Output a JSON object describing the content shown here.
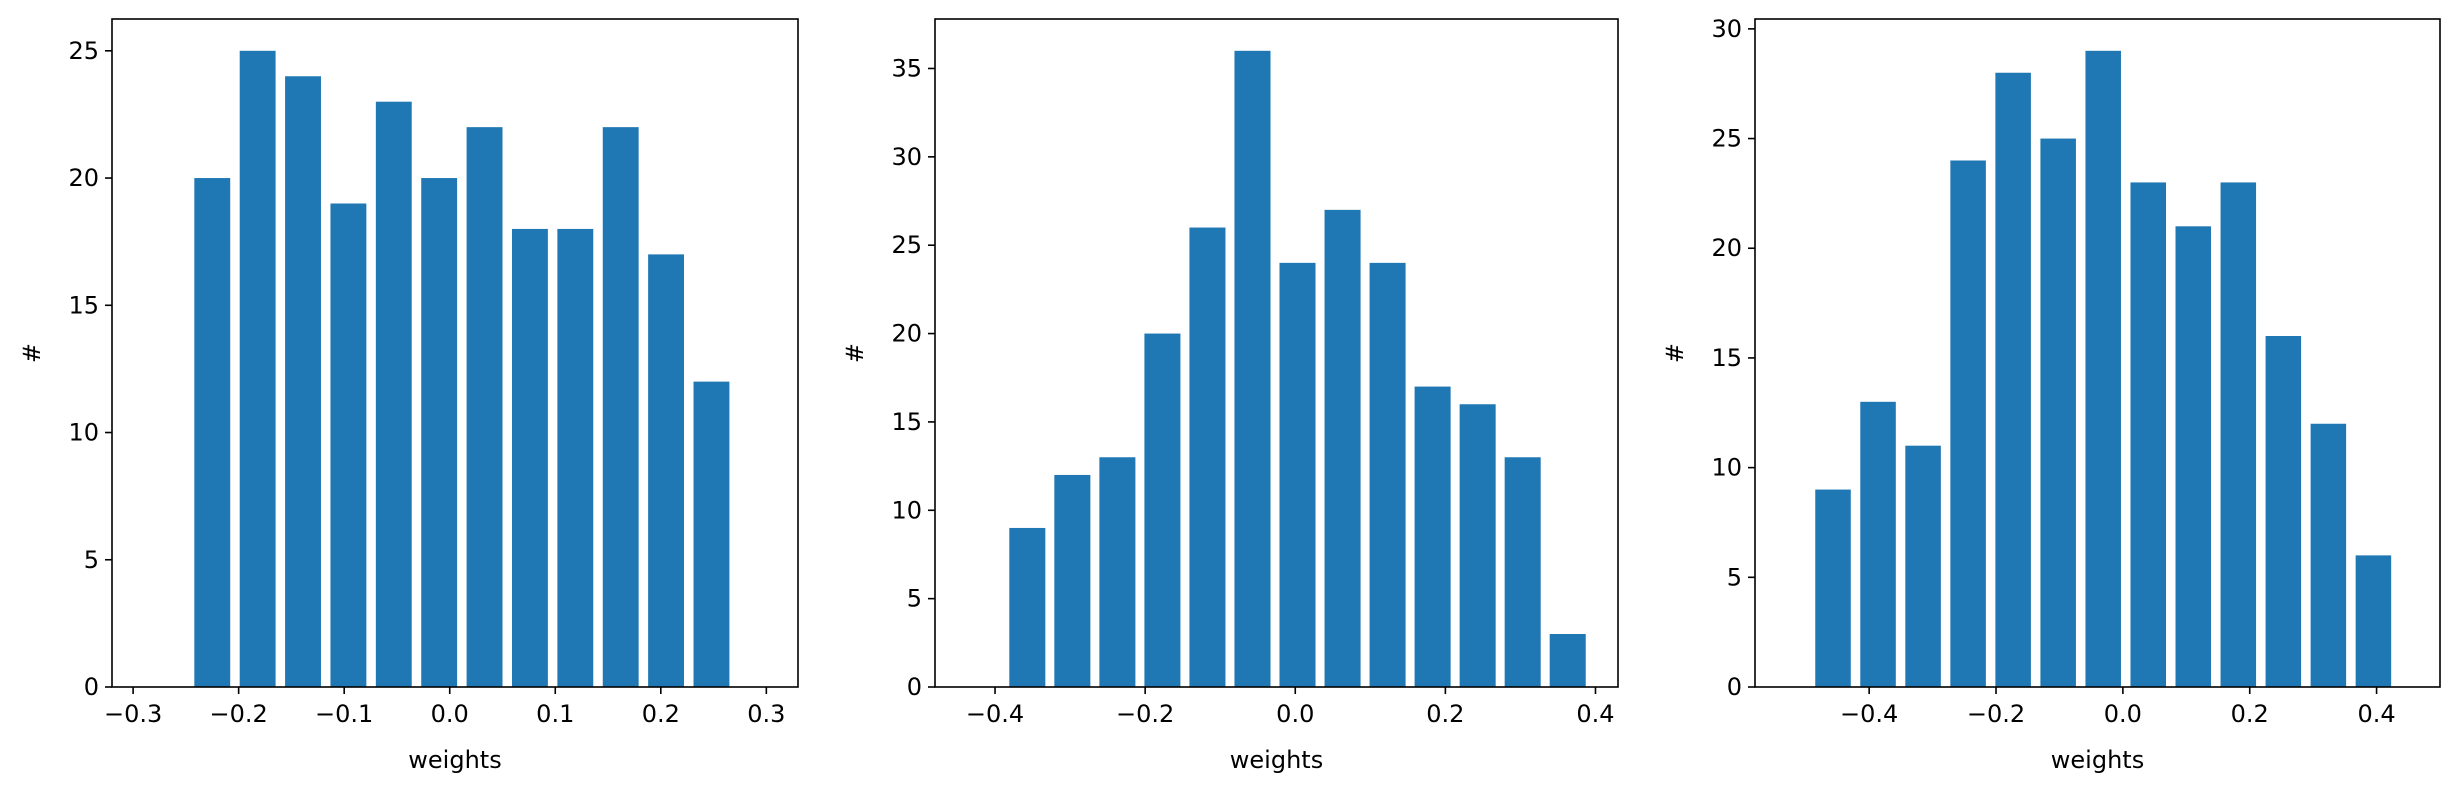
{
  "chart_data": [
    {
      "type": "bar",
      "title": "",
      "xlabel": "weights",
      "ylabel": "#",
      "xlim": [
        -0.32,
        0.33
      ],
      "ylim": [
        0,
        26.25
      ],
      "xticks": [
        -0.3,
        -0.2,
        -0.1,
        0.0,
        0.1,
        0.2,
        0.3
      ],
      "xtick_labels": [
        "−0.3",
        "−0.2",
        "−0.1",
        "0.0",
        "0.1",
        "0.2",
        "0.3"
      ],
      "yticks": [
        0,
        5,
        10,
        15,
        20,
        25
      ],
      "ytick_labels": [
        "0",
        "5",
        "10",
        "15",
        "20",
        "25"
      ],
      "bar_width": 0.034,
      "color": "#1f77b4",
      "x": [
        -0.225,
        -0.182,
        -0.139,
        -0.096,
        -0.053,
        -0.01,
        0.033,
        0.076,
        0.119,
        0.162,
        0.205,
        0.248
      ],
      "values": [
        20,
        25,
        24,
        19,
        23,
        20,
        22,
        18,
        18,
        22,
        17,
        12
      ]
    },
    {
      "type": "bar",
      "title": "",
      "xlabel": "weights",
      "ylabel": "#",
      "xlim": [
        -0.48,
        0.43
      ],
      "ylim": [
        0,
        37.8
      ],
      "xticks": [
        -0.4,
        -0.2,
        0.0,
        0.2,
        0.4
      ],
      "xtick_labels": [
        "−0.4",
        "−0.2",
        "0.0",
        "0.2",
        "0.4"
      ],
      "yticks": [
        0,
        5,
        10,
        15,
        20,
        25,
        30,
        35
      ],
      "ytick_labels": [
        "0",
        "5",
        "10",
        "15",
        "20",
        "25",
        "30",
        "35"
      ],
      "bar_width": 0.048,
      "color": "#1f77b4",
      "x": [
        -0.357,
        -0.297,
        -0.237,
        -0.177,
        -0.117,
        -0.057,
        0.003,
        0.063,
        0.123,
        0.183,
        0.243,
        0.303,
        0.363
      ],
      "values": [
        9,
        12,
        13,
        20,
        26,
        36,
        24,
        27,
        24,
        17,
        16,
        13,
        3
      ]
    },
    {
      "type": "bar",
      "title": "",
      "xlabel": "weights",
      "ylabel": "#",
      "xlim": [
        -0.58,
        0.5
      ],
      "ylim": [
        0,
        30.45
      ],
      "xticks": [
        -0.4,
        -0.2,
        0.0,
        0.2,
        0.4
      ],
      "xtick_labels": [
        "−0.4",
        "−0.2",
        "0.0",
        "0.2",
        "0.4"
      ],
      "yticks": [
        0,
        5,
        10,
        15,
        20,
        25,
        30
      ],
      "ytick_labels": [
        "0",
        "5",
        "10",
        "15",
        "20",
        "25",
        "30"
      ],
      "bar_width": 0.056,
      "color": "#1f77b4",
      "x": [
        -0.457,
        -0.386,
        -0.315,
        -0.244,
        -0.173,
        -0.102,
        -0.031,
        0.04,
        0.111,
        0.182,
        0.253,
        0.324,
        0.395
      ],
      "values": [
        9,
        13,
        11,
        24,
        28,
        25,
        29,
        23,
        21,
        23,
        16,
        12,
        6
      ]
    }
  ]
}
